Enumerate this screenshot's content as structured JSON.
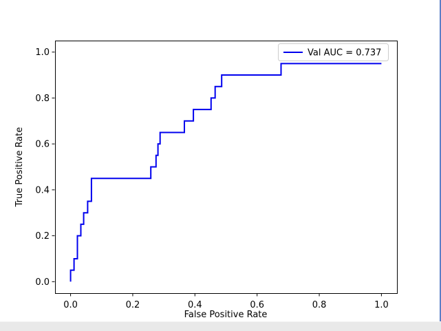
{
  "window": {
    "background": "#ffffff",
    "right_edge_color": "#5b7fc7",
    "bottom_strip_color": "#e9e9e9"
  },
  "chart_data": {
    "type": "line",
    "subtype": "roc-step-curve",
    "title": "",
    "xlabel": "False Positive Rate",
    "ylabel": "True Positive Rate",
    "xlim": [
      -0.05,
      1.05
    ],
    "ylim": [
      -0.05,
      1.05
    ],
    "x_ticks": [
      0.0,
      0.2,
      0.4,
      0.6,
      0.8,
      1.0
    ],
    "y_ticks": [
      0.0,
      0.2,
      0.4,
      0.6,
      0.8,
      1.0
    ],
    "x_tick_labels": [
      "0.0",
      "0.2",
      "0.4",
      "0.6",
      "0.8",
      "1.0"
    ],
    "y_tick_labels": [
      "0.0",
      "0.2",
      "0.4",
      "0.6",
      "0.8",
      "1.0"
    ],
    "grid": false,
    "spine_color": "#000000",
    "legend": {
      "position": "upper right",
      "border_color": "#cccccc",
      "background": "#ffffff",
      "entries": [
        {
          "label": "Val AUC = 0.737",
          "color": "#0000ee",
          "style": "line"
        }
      ]
    },
    "series": [
      {
        "name": "Val AUC = 0.737",
        "color": "#0000ee",
        "line_width": 2,
        "points": [
          [
            0.0,
            0.0
          ],
          [
            0.0,
            0.05
          ],
          [
            0.011,
            0.05
          ],
          [
            0.011,
            0.1
          ],
          [
            0.022,
            0.1
          ],
          [
            0.022,
            0.2
          ],
          [
            0.033,
            0.2
          ],
          [
            0.033,
            0.25
          ],
          [
            0.042,
            0.25
          ],
          [
            0.042,
            0.3
          ],
          [
            0.055,
            0.3
          ],
          [
            0.055,
            0.35
          ],
          [
            0.067,
            0.35
          ],
          [
            0.067,
            0.45
          ],
          [
            0.258,
            0.45
          ],
          [
            0.258,
            0.5
          ],
          [
            0.275,
            0.5
          ],
          [
            0.275,
            0.55
          ],
          [
            0.281,
            0.55
          ],
          [
            0.281,
            0.6
          ],
          [
            0.288,
            0.6
          ],
          [
            0.288,
            0.65
          ],
          [
            0.366,
            0.65
          ],
          [
            0.366,
            0.7
          ],
          [
            0.395,
            0.7
          ],
          [
            0.395,
            0.75
          ],
          [
            0.452,
            0.75
          ],
          [
            0.452,
            0.8
          ],
          [
            0.465,
            0.8
          ],
          [
            0.465,
            0.85
          ],
          [
            0.486,
            0.85
          ],
          [
            0.486,
            0.9
          ],
          [
            0.677,
            0.9
          ],
          [
            0.677,
            0.95
          ],
          [
            1.0,
            0.95
          ]
        ]
      }
    ]
  }
}
